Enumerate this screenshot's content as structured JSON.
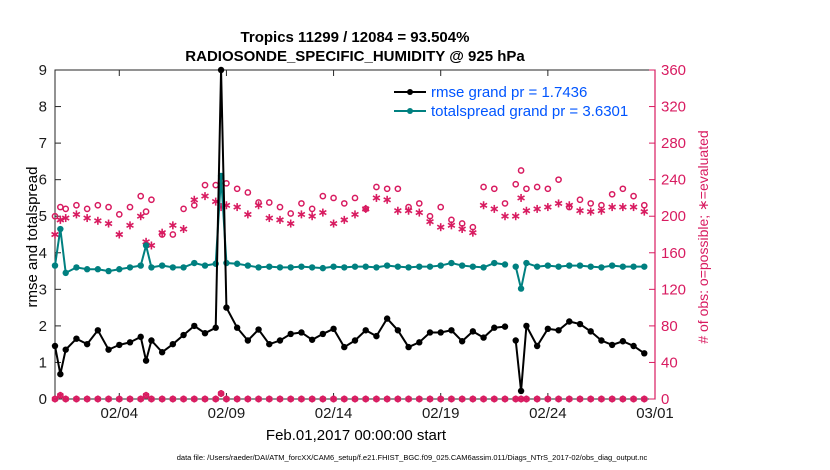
{
  "chart_data": {
    "type": "line",
    "title_line1": "Tropics 11299 / 12084 = 93.504%",
    "title_line2": "RADIOSONDE_SPECIFIC_HUMIDITY @ 925 hPa",
    "xlabel": "Feb.01,2017 00:00:00 start",
    "ylabel_left": "rmse and totalspread",
    "ylabel_right": "# of obs: o=possible; ∗=evaluated",
    "x_ticks": [
      "02/04",
      "02/09",
      "02/14",
      "02/19",
      "02/24",
      "03/01"
    ],
    "x_tick_days": [
      4,
      9,
      14,
      19,
      24,
      29
    ],
    "xlim": [
      1,
      29
    ],
    "y_left_ticks": [
      "0",
      "1",
      "2",
      "3",
      "4",
      "5",
      "6",
      "7",
      "8",
      "9"
    ],
    "ylim_left": [
      0,
      9
    ],
    "y_right_ticks": [
      "0",
      "40",
      "80",
      "120",
      "160",
      "200",
      "240",
      "280",
      "320",
      "360"
    ],
    "ylim_right": [
      0,
      360
    ],
    "colors": {
      "rmse": "#000000",
      "spread": "#008080",
      "obs": "#d81b60",
      "legend_text": "#0055ff"
    },
    "series": [
      {
        "name": "rmse",
        "legend": "rmse grand pr = 1.7436",
        "x": [
          1,
          1.25,
          1.5,
          2,
          2.5,
          3,
          3.5,
          4,
          4.5,
          5,
          5.25,
          5.5,
          6,
          6.5,
          7,
          7.5,
          8,
          8.5,
          8.75,
          9,
          9.5,
          10,
          10.5,
          11,
          11.5,
          12,
          12.5,
          13,
          13.5,
          14,
          14.5,
          15,
          15.5,
          16,
          16.5,
          17,
          17.5,
          18,
          18.5,
          19,
          19.5,
          20,
          20.5,
          21,
          21.5,
          22,
          22.5,
          22.75,
          23,
          23.5,
          24,
          24.5,
          25,
          25.5,
          26,
          26.5,
          27,
          27.5,
          28,
          28.5
        ],
        "y": [
          1.45,
          0.68,
          1.35,
          1.65,
          1.5,
          1.88,
          1.35,
          1.48,
          1.55,
          1.7,
          1.05,
          1.6,
          1.28,
          1.5,
          1.75,
          2.0,
          1.8,
          1.95,
          9.0,
          2.5,
          1.95,
          1.6,
          1.9,
          1.5,
          1.6,
          1.78,
          1.82,
          1.62,
          1.78,
          1.92,
          1.42,
          1.6,
          1.88,
          1.72,
          2.2,
          1.88,
          1.42,
          1.55,
          1.82,
          1.82,
          1.88,
          1.58,
          1.85,
          1.68,
          1.95,
          1.98,
          1.6,
          0.22,
          2.0,
          1.45,
          1.92,
          1.88,
          2.12,
          2.05,
          1.85,
          1.6,
          1.48,
          1.58,
          1.45,
          1.25
        ],
        "gaps": [
          [
            22,
            22.5
          ],
          [
            22.75,
            23.5
          ]
        ]
      },
      {
        "name": "totalspread",
        "legend": "totalspread grand pr = 3.6301",
        "x": [
          1,
          1.25,
          1.5,
          2,
          2.5,
          3,
          3.5,
          4,
          4.5,
          5,
          5.25,
          5.5,
          6,
          6.5,
          7,
          7.5,
          8,
          8.5,
          8.75,
          9,
          9.5,
          10,
          10.5,
          11,
          11.5,
          12,
          12.5,
          13,
          13.5,
          14,
          14.5,
          15,
          15.5,
          16,
          16.5,
          17,
          17.5,
          18,
          18.5,
          19,
          19.5,
          20,
          20.5,
          21,
          21.5,
          22,
          22.5,
          22.75,
          23,
          23.5,
          24,
          24.5,
          25,
          25.5,
          26,
          26.5,
          27,
          27.5,
          28,
          28.5
        ],
        "y": [
          3.65,
          4.65,
          3.45,
          3.6,
          3.55,
          3.55,
          3.5,
          3.55,
          3.6,
          3.65,
          4.2,
          3.6,
          3.65,
          3.6,
          3.6,
          3.72,
          3.65,
          3.7,
          6.1,
          3.72,
          3.7,
          3.65,
          3.6,
          3.62,
          3.6,
          3.6,
          3.62,
          3.6,
          3.58,
          3.62,
          3.6,
          3.62,
          3.62,
          3.6,
          3.65,
          3.62,
          3.6,
          3.62,
          3.62,
          3.65,
          3.72,
          3.65,
          3.62,
          3.6,
          3.72,
          3.68,
          3.62,
          3.02,
          3.72,
          3.62,
          3.65,
          3.62,
          3.65,
          3.65,
          3.62,
          3.6,
          3.65,
          3.62,
          3.62,
          3.62
        ],
        "gaps": [
          [
            22,
            22.5
          ],
          [
            22.75,
            23.5
          ]
        ]
      },
      {
        "name": "obs_possible",
        "marker": "o",
        "x": [
          1,
          1.25,
          1.5,
          2,
          2.5,
          3,
          3.5,
          4,
          4.5,
          5,
          5.25,
          5.5,
          6,
          6.5,
          7,
          7.5,
          8,
          8.5,
          8.75,
          9,
          9.5,
          10,
          10.5,
          11,
          11.5,
          12,
          12.5,
          13,
          13.5,
          14,
          14.5,
          15,
          15.5,
          16,
          16.5,
          17,
          17.5,
          18,
          18.5,
          19,
          19.5,
          20,
          20.5,
          21,
          21.5,
          22,
          22.5,
          22.75,
          23,
          23.5,
          24,
          24.5,
          25,
          25.5,
          26,
          26.5,
          27,
          27.5,
          28,
          28.5
        ],
        "y": [
          200,
          210,
          208,
          212,
          208,
          212,
          210,
          202,
          210,
          222,
          205,
          218,
          180,
          180,
          208,
          212,
          234,
          234,
          238,
          236,
          230,
          226,
          215,
          215,
          210,
          203,
          214,
          208,
          222,
          220,
          214,
          220,
          208,
          232,
          230,
          230,
          210,
          214,
          200,
          210,
          196,
          192,
          188,
          232,
          230,
          214,
          235,
          250,
          230,
          232,
          230,
          240,
          210,
          218,
          214,
          212,
          224,
          230,
          222,
          212
        ]
      },
      {
        "name": "obs_evaluated",
        "marker": "*",
        "x": [
          1,
          1.25,
          1.5,
          2,
          2.5,
          3,
          3.5,
          4,
          4.5,
          5,
          5.25,
          5.5,
          6,
          6.5,
          7,
          7.5,
          8,
          8.5,
          8.75,
          9,
          9.5,
          10,
          10.5,
          11,
          11.5,
          12,
          12.5,
          13,
          13.5,
          14,
          14.5,
          15,
          15.5,
          16,
          16.5,
          17,
          17.5,
          18,
          18.5,
          19,
          19.5,
          20,
          20.5,
          21,
          21.5,
          22,
          22.5,
          22.75,
          23,
          23.5,
          24,
          24.5,
          25,
          25.5,
          26,
          26.5,
          27,
          27.5,
          28,
          28.5
        ],
        "y": [
          180,
          196,
          198,
          202,
          198,
          195,
          192,
          180,
          190,
          200,
          172,
          168,
          182,
          190,
          186,
          218,
          222,
          216,
          210,
          212,
          210,
          202,
          212,
          198,
          196,
          192,
          202,
          200,
          204,
          192,
          196,
          202,
          208,
          220,
          218,
          206,
          206,
          204,
          194,
          188,
          190,
          186,
          182,
          212,
          208,
          200,
          200,
          220,
          206,
          208,
          210,
          214,
          212,
          206,
          205,
          206,
          210,
          210,
          210,
          205
        ]
      },
      {
        "name": "obs_zero",
        "marker": "o*",
        "x": [
          1,
          1.25,
          1.5,
          2,
          2.5,
          3,
          3.5,
          4,
          4.5,
          5,
          5.25,
          5.5,
          6,
          6.5,
          7,
          7.5,
          8,
          8.5,
          8.75,
          9,
          9.5,
          10,
          10.5,
          11,
          11.5,
          12,
          12.5,
          13,
          13.5,
          14,
          14.5,
          15,
          15.5,
          16,
          16.5,
          17,
          17.5,
          18,
          18.5,
          19,
          19.5,
          20,
          20.5,
          21,
          21.5,
          22,
          22.5,
          22.75,
          23,
          23.5,
          24,
          24.5,
          25,
          25.5,
          26,
          26.5,
          27,
          27.5,
          28,
          28.5
        ],
        "y": [
          0,
          4,
          0,
          0,
          0,
          0,
          0,
          0,
          0,
          0,
          4,
          0,
          0,
          0,
          0,
          0,
          0,
          0,
          6,
          0,
          0,
          0,
          0,
          0,
          0,
          0,
          0,
          0,
          0,
          0,
          0,
          0,
          0,
          0,
          0,
          0,
          0,
          0,
          0,
          0,
          0,
          0,
          0,
          0,
          0,
          0,
          0,
          0,
          0,
          0,
          0,
          0,
          0,
          0,
          0,
          0,
          0,
          0,
          0,
          0
        ]
      }
    ]
  },
  "footer": "data file: /Users/raeder/DAI/ATM_forcXX/CAM6_setup/f.e21.FHIST_BGC.f09_025.CAM6assim.011/Diags_NTrS_2017-02/obs_diag_output.nc"
}
